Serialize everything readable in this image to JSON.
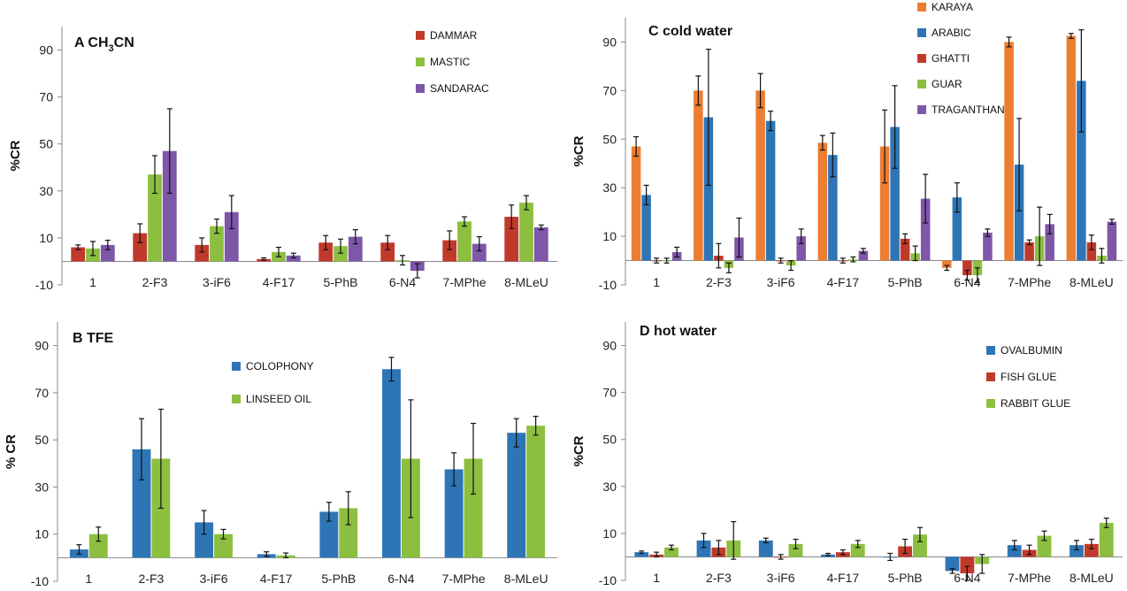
{
  "chart_data": [
    {
      "panel": "A",
      "type": "bar",
      "title": "A CH3CN",
      "title_prefix": "A CH",
      "title_sub": "3",
      "title_suffix": "CN",
      "ylabel": "%CR",
      "ylim": [
        -10,
        100
      ],
      "yticks": [
        -10,
        10,
        30,
        50,
        70,
        90
      ],
      "categories": [
        "1",
        "2-F3",
        "3-iF6",
        "4-F17",
        "5-PhB",
        "6-N4",
        "7-MPhe",
        "8-MLeU"
      ],
      "legend_position": "top-right",
      "series": [
        {
          "name": "DAMMAR",
          "color": "#c0392b",
          "values": [
            6,
            12,
            7,
            1,
            8,
            8,
            9,
            19
          ],
          "errors": [
            1,
            4,
            3,
            0.5,
            3,
            3,
            4,
            5
          ]
        },
        {
          "name": "MASTIC",
          "color": "#8cbf3f",
          "values": [
            5.5,
            37,
            15,
            4,
            6.5,
            0.5,
            17,
            25
          ],
          "errors": [
            3,
            8,
            3,
            2,
            3,
            2,
            2,
            3
          ]
        },
        {
          "name": "SANDARAC",
          "color": "#7e57a8",
          "values": [
            7,
            47,
            21,
            2.5,
            10.5,
            -4,
            7.5,
            14.5
          ],
          "errors": [
            2,
            18,
            7,
            1,
            3,
            3,
            3,
            1
          ]
        }
      ]
    },
    {
      "panel": "B",
      "type": "bar",
      "title": "B TFE",
      "ylabel": "% CR",
      "ylim": [
        -10,
        100
      ],
      "yticks": [
        -10,
        10,
        30,
        50,
        70,
        90
      ],
      "categories": [
        "1",
        "2-F3",
        "3-iF6",
        "4-F17",
        "5-PhB",
        "6-N4",
        "7-MPhe",
        "8-MLeU"
      ],
      "legend_position": "top-center",
      "series": [
        {
          "name": "COLOPHONY",
          "color": "#2e75b6",
          "values": [
            3.5,
            46,
            15,
            1.5,
            19.5,
            80,
            37.5,
            53
          ],
          "errors": [
            2,
            13,
            5,
            1,
            4,
            5,
            7,
            6
          ]
        },
        {
          "name": "LINSEED OIL",
          "color": "#8cbf3f",
          "values": [
            10,
            42,
            10,
            1,
            21,
            42,
            42,
            56
          ],
          "errors": [
            3,
            21,
            2,
            1,
            7,
            25,
            15,
            4
          ]
        }
      ]
    },
    {
      "panel": "C",
      "type": "bar",
      "title": "C cold water",
      "ylabel": "%CR",
      "ylim": [
        -10,
        100
      ],
      "yticks": [
        -10,
        10,
        30,
        50,
        70,
        90
      ],
      "categories": [
        "1",
        "2-F3",
        "3-iF6",
        "4-F17",
        "5-PhB",
        "6-N4",
        "7-MPhe",
        "8-MLeU"
      ],
      "legend_position": "top-right",
      "series": [
        {
          "name": "KARAYA",
          "color": "#ed7d31",
          "values": [
            47,
            70,
            70,
            48.5,
            47,
            -3,
            90,
            92.5
          ],
          "errors": [
            4,
            6,
            7,
            3,
            15,
            1,
            2,
            1
          ]
        },
        {
          "name": "ARABIC",
          "color": "#2e75b6",
          "values": [
            27,
            59,
            57.5,
            43.5,
            55,
            26,
            39.5,
            74
          ],
          "errors": [
            4,
            28,
            4,
            9,
            17,
            6,
            19,
            21
          ]
        },
        {
          "name": "GHATTI",
          "color": "#c0392b",
          "values": [
            0,
            2,
            0,
            0,
            9,
            -6,
            7.5,
            7.5
          ],
          "errors": [
            1,
            5,
            1,
            1,
            2,
            2,
            1,
            3
          ]
        },
        {
          "name": "GUAR",
          "color": "#8cbf3f",
          "values": [
            0,
            -3,
            -2,
            0.5,
            3,
            -6,
            10,
            2
          ],
          "errors": [
            1,
            2,
            2,
            1,
            3,
            3,
            12,
            3
          ]
        },
        {
          "name": "TRAGANTHAN",
          "color": "#7e57a8",
          "values": [
            3.5,
            9.5,
            10,
            4,
            25.5,
            11.5,
            15,
            16
          ],
          "errors": [
            2,
            8,
            3,
            1,
            10,
            1.5,
            4,
            1
          ]
        }
      ]
    },
    {
      "panel": "D",
      "type": "bar",
      "title": "D hot water",
      "ylabel": "%CR",
      "ylim": [
        -10,
        100
      ],
      "yticks": [
        -10,
        10,
        30,
        50,
        70,
        90
      ],
      "categories": [
        "1",
        "2-F3",
        "3-iF6",
        "4-F17",
        "5-PhB",
        "6-N4",
        "7-MPhe",
        "8-MLeU"
      ],
      "legend_position": "top-right",
      "series": [
        {
          "name": "OVALBUMIN",
          "color": "#2e75b6",
          "values": [
            2,
            7,
            7,
            1,
            0,
            -6,
            5,
            5
          ],
          "errors": [
            0.5,
            3,
            1,
            0.5,
            1.5,
            1,
            2,
            2
          ]
        },
        {
          "name": "FISH GLUE",
          "color": "#c0392b",
          "values": [
            1,
            4,
            0,
            2,
            4.5,
            -7,
            3,
            5.5
          ],
          "errors": [
            1,
            3,
            1,
            1,
            3,
            3,
            2,
            2
          ]
        },
        {
          "name": "RABBIT GLUE",
          "color": "#8cbf3f",
          "values": [
            4,
            7,
            5.5,
            5.5,
            9.5,
            -3,
            9,
            14.5
          ],
          "errors": [
            1,
            8,
            2,
            1.5,
            3,
            4,
            2,
            2
          ]
        }
      ]
    }
  ]
}
